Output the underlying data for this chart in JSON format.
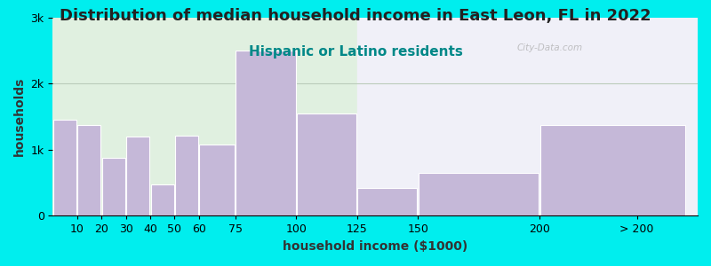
{
  "title": "Distribution of median household income in East Leon, FL in 2022",
  "subtitle": "Hispanic or Latino residents",
  "xlabel": "household income ($1000)",
  "ylabel": "households",
  "background_outer": "#00EEEE",
  "bar_color": "#c5b8d8",
  "bar_edgecolor": "#ffffff",
  "bin_lefts": [
    0,
    10,
    20,
    30,
    40,
    50,
    60,
    75,
    100,
    125,
    150,
    200
  ],
  "bin_rights": [
    10,
    20,
    30,
    40,
    50,
    60,
    75,
    100,
    125,
    150,
    200,
    260
  ],
  "values": [
    1450,
    1380,
    880,
    1200,
    480,
    1220,
    1080,
    2500,
    1550,
    420,
    650,
    1380
  ],
  "xtick_positions": [
    10,
    20,
    30,
    40,
    50,
    60,
    75,
    100,
    125,
    150,
    200
  ],
  "xtick_labels": [
    "10",
    "20",
    "30",
    "40",
    "50",
    "60",
    "75",
    "100",
    "125",
    "150",
    "200"
  ],
  "xlabel_extra_pos": 240,
  "xlabel_extra_label": "> 200",
  "ylim": [
    0,
    3000
  ],
  "yticks": [
    0,
    1000,
    2000,
    3000
  ],
  "ytick_labels": [
    "0",
    "1k",
    "2k",
    "3k"
  ],
  "title_fontsize": 13,
  "subtitle_fontsize": 11,
  "subtitle_color": "#008888",
  "axis_label_fontsize": 10,
  "tick_fontsize": 9,
  "watermark": "City-Data.com",
  "xlim_left": 0,
  "xlim_right": 265
}
